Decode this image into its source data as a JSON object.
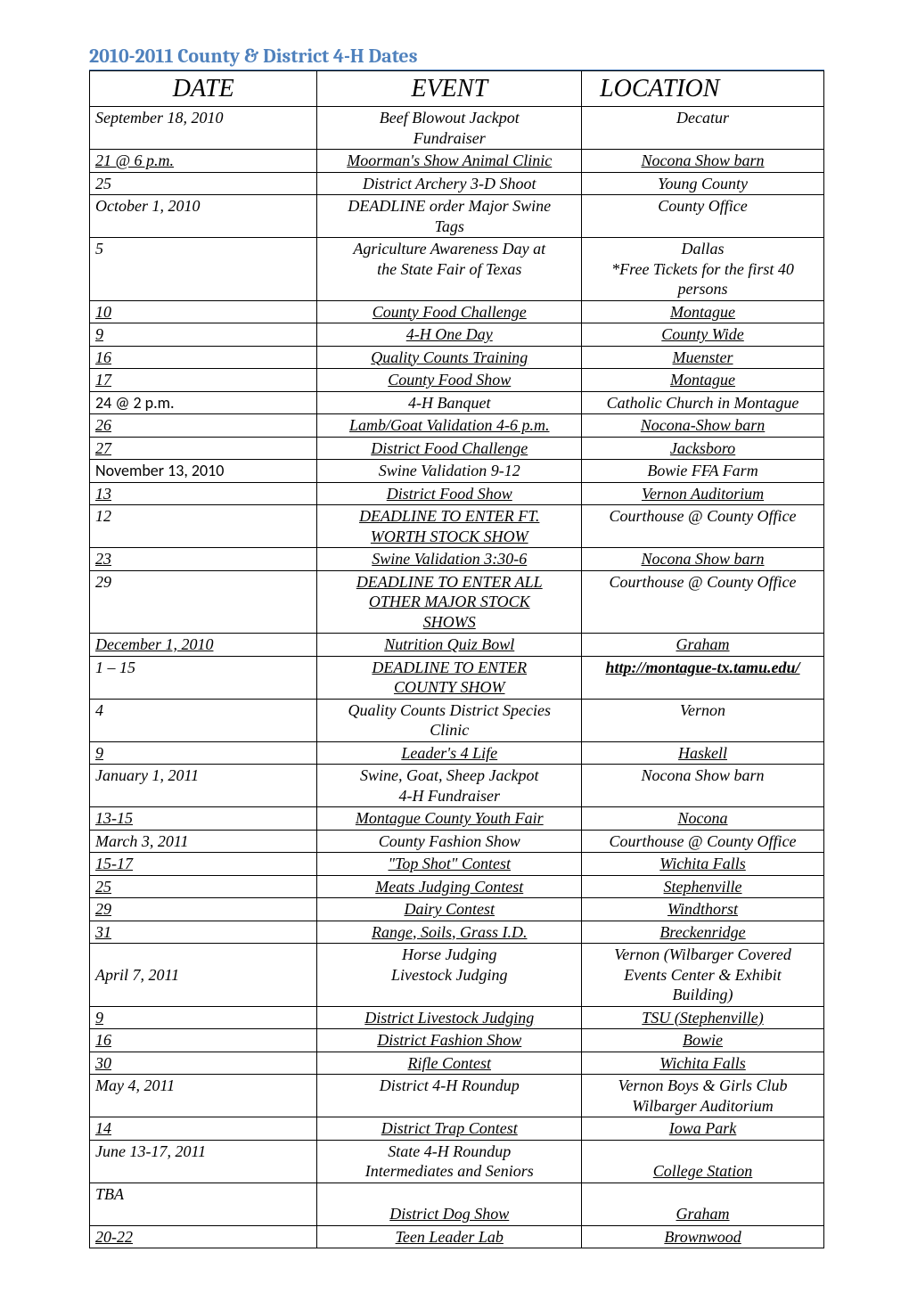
{
  "title": "2010-2011 County & District 4-H Dates",
  "headers": {
    "date": "DATE",
    "event": "EVENT",
    "location": "LOCATION"
  },
  "rows": [
    {
      "date": "September 18, 2010",
      "event": "Beef Blowout Jackpot\nFundraiser",
      "location": "Decatur"
    },
    {
      "date": "21 @ 6 p.m.",
      "date_ul": true,
      "event": "Moorman's Show Animal Clinic",
      "event_ul": true,
      "location": "Nocona Show barn",
      "location_ul": true
    },
    {
      "date": "  25",
      "event": "District Archery 3-D Shoot",
      "location": "Young County"
    },
    {
      "date": "October 1, 2010",
      "event": "DEADLINE order Major Swine\nTags",
      "location": "County Office"
    },
    {
      "date": "5",
      "event": "Agriculture Awareness Day at\nthe State Fair of Texas",
      "location": "Dallas\n*Free Tickets for the first 40\npersons"
    },
    {
      "date": "10",
      "date_ul": true,
      "event": "County Food Challenge",
      "event_ul": true,
      "location": "Montague",
      "location_ul": true
    },
    {
      "date": "9",
      "date_ul": true,
      "event": "4-H One Day",
      "event_ul": true,
      "location": "County Wide",
      "location_ul": true
    },
    {
      "date": "16",
      "date_ul": true,
      "event": "Quality Counts Training",
      "event_ul": true,
      "location": "Muenster",
      "location_ul": true
    },
    {
      "date": "17",
      "date_ul": true,
      "event": "County Food Show",
      "event_ul": true,
      "location": "Montague",
      "location_ul": true
    },
    {
      "date": "24 @ 2 p.m.",
      "date_style": "nonitalic-bold",
      "event": "4-H Banquet",
      "location": "Catholic Church in Montague"
    },
    {
      "date": "26",
      "date_ul": true,
      "event": "Lamb/Goat Validation 4-6 p.m.",
      "event_ul": true,
      "location": "Nocona-Show barn",
      "location_ul": true
    },
    {
      "date": "27",
      "date_ul": true,
      "event": "District Food Challenge",
      "event_ul": true,
      "location": "Jacksboro",
      "location_ul": true
    },
    {
      "date": "November 13, 2010",
      "date_style": "nonitalic-bold",
      "event": "Swine Validation 9-12",
      "location": "Bowie FFA Farm"
    },
    {
      "date": "13",
      "date_ul": true,
      "event": "District Food Show",
      "event_ul": true,
      "location": "Vernon Auditorium",
      "location_ul": true
    },
    {
      "date": "12",
      "event": "DEADLINE TO ENTER FT.\nWORTH STOCK SHOW",
      "event_ul": true,
      "location": "Courthouse @ County Office"
    },
    {
      "date": "23",
      "date_ul": true,
      "event": "Swine Validation 3:30-6",
      "event_ul": true,
      "location": "Nocona Show barn",
      "location_ul": true
    },
    {
      "date": "29",
      "event": "DEADLINE TO ENTER ALL\nOTHER MAJOR STOCK\nSHOWS",
      "event_ul": true,
      "location": "Courthouse @ County Office"
    },
    {
      "date": "December 1, 2010",
      "date_ul": true,
      "event": "Nutrition Quiz Bowl",
      "event_ul": true,
      "location": "Graham",
      "location_ul": true
    },
    {
      "date": "1 – 15",
      "event": "DEADLINE TO ENTER\nCOUNTY SHOW",
      "event_ul": true,
      "location": "http://montague-tx.tamu.edu/",
      "location_link": true
    },
    {
      "date": "4",
      "event": "Quality Counts District Species\nClinic",
      "location": "Vernon"
    },
    {
      "date": "9",
      "date_ul": true,
      "event": "Leader's 4 Life",
      "event_ul": true,
      "location": "Haskell",
      "location_ul": true
    },
    {
      "date": "January 1, 2011",
      "event": "Swine, Goat, Sheep Jackpot\n4-H Fundraiser",
      "location": "Nocona Show barn"
    },
    {
      "date": "13-15",
      "date_ul": true,
      "event": "Montague County Youth Fair",
      "event_ul": true,
      "location": "Nocona",
      "location_ul": true
    },
    {
      "date": "March 3, 2011",
      "event": "County  Fashion Show\n ",
      "location": "Courthouse @ County Office"
    },
    {
      "date": "15-17",
      "date_ul": true,
      "event": "\"Top Shot\" Contest",
      "event_ul": true,
      "location": "Wichita Falls",
      "location_ul": true
    },
    {
      "date": "25",
      "date_ul": true,
      "event": "Meats Judging Contest",
      "event_ul": true,
      "location": "Stephenville",
      "location_ul": true
    },
    {
      "date": "29",
      "date_ul": true,
      "event": "Dairy Contest",
      "event_ul": true,
      "location": "Windthorst",
      "location_ul": true
    },
    {
      "date": "31",
      "date_ul": true,
      "event": "Range, Soils, Grass I.D.",
      "event_ul": true,
      "location": "Breckenridge",
      "location_ul": true
    },
    {
      "date": "\nApril 7, 2011",
      "event": "Horse Judging\nLivestock Judging",
      "location": "Vernon (Wilbarger Covered\nEvents Center & Exhibit\nBuilding)"
    },
    {
      "date": "9",
      "date_ul": true,
      "event": "District Livestock Judging",
      "event_ul": true,
      "location": "TSU (Stephenville)",
      "location_ul": true
    },
    {
      "date": "16",
      "date_ul": true,
      "event": "District Fashion Show",
      "event_ul": true,
      "location": "Bowie",
      "location_ul": true
    },
    {
      "date": "30",
      "date_ul": true,
      "event": "Rifle Contest",
      "event_ul": true,
      "location": "Wichita Falls",
      "location_ul": true
    },
    {
      "date": "May 4, 2011",
      "event": "District 4-H Roundup",
      "location": "Vernon Boys & Girls Club\nWilbarger Auditorium"
    },
    {
      "date": "14",
      "date_ul": true,
      "event": "District Trap Contest",
      "event_ul": true,
      "location": "Iowa Park",
      "location_ul": true
    },
    {
      "date": "June 13-17, 2011",
      "event": "State 4-H Roundup\nIntermediates and Seniors",
      "location": "\nCollege Station",
      "location_ul": true
    },
    {
      "date": "TBA",
      "event": "\nDistrict Dog Show",
      "event_ul": true,
      "location": "\nGraham",
      "location_ul": true
    },
    {
      "date": "20-22",
      "date_ul": true,
      "event": "Teen Leader Lab",
      "event_ul": true,
      "location": "Brownwood",
      "location_ul": true
    }
  ]
}
